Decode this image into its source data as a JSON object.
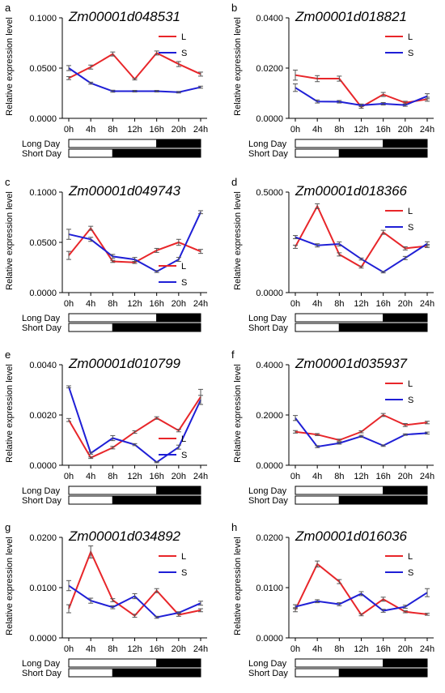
{
  "figure": {
    "ylabel": "Relative expression level",
    "bar_labels": [
      "Long Day",
      "Short Day"
    ],
    "colors": {
      "L": "#e8262a",
      "S": "#1f1fd6",
      "bar": "#000000",
      "light": "#ffffff"
    }
  },
  "chart_data": [
    {
      "panel": "a",
      "type": "line",
      "title": "Zm00001d048531",
      "categories": [
        "0h",
        "4h",
        "8h",
        "12h",
        "16h",
        "20h",
        "24h"
      ],
      "yticks": [
        "0.1000",
        "0.0500",
        "0.0000"
      ],
      "ylim": [
        0,
        0.1
      ],
      "legend": "top-right",
      "series": [
        {
          "name": "L",
          "values": [
            0.04,
            0.051,
            0.064,
            0.039,
            0.065,
            0.054,
            0.044
          ],
          "err": [
            0.0015,
            0.002,
            0.002,
            0.0008,
            0.002,
            0.0025,
            0.002
          ]
        },
        {
          "name": "S",
          "values": [
            0.05,
            0.035,
            0.027,
            0.027,
            0.027,
            0.026,
            0.031
          ],
          "err": [
            0.0025,
            0.001,
            0.001,
            0.0008,
            0.0008,
            0.0008,
            0.001
          ]
        }
      ],
      "light_end": {
        "long": 16,
        "short": 8
      }
    },
    {
      "panel": "b",
      "type": "line",
      "title": "Zm00001d018821",
      "categories": [
        "0h",
        "4h",
        "8h",
        "12h",
        "16h",
        "20h",
        "24h"
      ],
      "yticks": [
        "0.0400",
        "0.0200",
        "0.0000"
      ],
      "ylim": [
        0,
        0.04
      ],
      "legend": "top-right",
      "series": [
        {
          "name": "L",
          "values": [
            0.0172,
            0.0158,
            0.0158,
            0.0045,
            0.0095,
            0.0062,
            0.0076
          ],
          "err": [
            0.002,
            0.0012,
            0.001,
            0.0005,
            0.0008,
            0.0006,
            0.0008
          ]
        },
        {
          "name": "S",
          "values": [
            0.0122,
            0.0067,
            0.0066,
            0.0052,
            0.0058,
            0.0053,
            0.0088
          ],
          "err": [
            0.0015,
            0.0006,
            0.0005,
            0.0005,
            0.0005,
            0.0005,
            0.001
          ]
        }
      ],
      "light_end": {
        "long": 16,
        "short": 8
      }
    },
    {
      "panel": "c",
      "type": "line",
      "title": "Zm00001d049743",
      "categories": [
        "0h",
        "4h",
        "8h",
        "12h",
        "16h",
        "20h",
        "24h"
      ],
      "yticks": [
        "0.1000",
        "0.0500",
        "0.0000"
      ],
      "ylim": [
        0,
        0.1
      ],
      "legend": "bottom-right",
      "series": [
        {
          "name": "L",
          "values": [
            0.037,
            0.064,
            0.031,
            0.03,
            0.042,
            0.05,
            0.041
          ],
          "err": [
            0.004,
            0.002,
            0.001,
            0.001,
            0.002,
            0.003,
            0.002
          ]
        },
        {
          "name": "S",
          "values": [
            0.058,
            0.053,
            0.036,
            0.033,
            0.021,
            0.033,
            0.08
          ],
          "err": [
            0.005,
            0.002,
            0.002,
            0.002,
            0.001,
            0.002,
            0.0015
          ]
        }
      ],
      "light_end": {
        "long": 16,
        "short": 8
      }
    },
    {
      "panel": "d",
      "type": "line",
      "title": "Zm00001d018366",
      "categories": [
        "0h",
        "4h",
        "8h",
        "12h",
        "16h",
        "20h",
        "24h"
      ],
      "yticks": [
        "0.5000",
        "0.0000"
      ],
      "ylim": [
        0,
        0.5
      ],
      "legend": "top-right",
      "series": [
        {
          "name": "L",
          "values": [
            0.228,
            0.43,
            0.19,
            0.127,
            0.3,
            0.22,
            0.232
          ],
          "err": [
            0.008,
            0.012,
            0.008,
            0.005,
            0.01,
            0.008,
            0.008
          ]
        },
        {
          "name": "S",
          "values": [
            0.276,
            0.235,
            0.242,
            0.167,
            0.102,
            0.172,
            0.243
          ],
          "err": [
            0.008,
            0.008,
            0.01,
            0.005,
            0.004,
            0.008,
            0.01
          ]
        }
      ],
      "light_end": {
        "long": 16,
        "short": 8
      }
    },
    {
      "panel": "e",
      "type": "line",
      "title": "Zm00001d010799",
      "categories": [
        "0h",
        "4h",
        "8h",
        "12h",
        "16h",
        "20h",
        "24h"
      ],
      "yticks": [
        "0.0040",
        "0.0020",
        "0.0000"
      ],
      "ylim": [
        0,
        0.004
      ],
      "legend": "bottom-right",
      "series": [
        {
          "name": "L",
          "values": [
            0.0018,
            0.0003,
            0.0007,
            0.00132,
            0.00188,
            0.00138,
            0.00272
          ],
          "err": [
            6e-05,
            3e-05,
            5e-05,
            5e-05,
            5e-05,
            5e-05,
            0.0003
          ]
        },
        {
          "name": "S",
          "values": [
            0.00312,
            0.00048,
            0.00108,
            0.00082,
            0.00012,
            0.00072,
            0.0026
          ],
          "err": [
            4e-05,
            4e-05,
            0.0001,
            4e-05,
            2e-05,
            8e-05,
            0.00018
          ]
        }
      ],
      "light_end": {
        "long": 16,
        "short": 8
      }
    },
    {
      "panel": "f",
      "type": "line",
      "title": "Zm00001d035937",
      "categories": [
        "0h",
        "4h",
        "8h",
        "12h",
        "16h",
        "20h",
        "24h"
      ],
      "yticks": [
        "0.4000",
        "0.2000",
        "0.0000"
      ],
      "ylim": [
        0,
        0.4
      ],
      "legend": "top-right",
      "series": [
        {
          "name": "L",
          "values": [
            0.133,
            0.122,
            0.1,
            0.133,
            0.2,
            0.16,
            0.17
          ],
          "err": [
            0.005,
            0.004,
            0.004,
            0.004,
            0.006,
            0.006,
            0.005
          ]
        },
        {
          "name": "S",
          "values": [
            0.188,
            0.074,
            0.088,
            0.115,
            0.078,
            0.122,
            0.128
          ],
          "err": [
            0.01,
            0.004,
            0.004,
            0.004,
            0.003,
            0.003,
            0.004
          ]
        }
      ],
      "light_end": {
        "long": 16,
        "short": 8
      }
    },
    {
      "panel": "g",
      "type": "line",
      "title": "Zm00001d034892",
      "categories": [
        "0h",
        "4h",
        "8h",
        "12h",
        "16h",
        "20h",
        "24h"
      ],
      "yticks": [
        "0.0200",
        "0.0100",
        "0.0000"
      ],
      "ylim": [
        0,
        0.02
      ],
      "legend": "top-right",
      "series": [
        {
          "name": "L",
          "values": [
            0.0058,
            0.0171,
            0.0075,
            0.0044,
            0.0094,
            0.0046,
            0.0055
          ],
          "err": [
            0.0008,
            0.0012,
            0.0003,
            0.0003,
            0.0004,
            0.0003,
            0.0003
          ]
        },
        {
          "name": "S",
          "values": [
            0.0104,
            0.0074,
            0.0061,
            0.0083,
            0.0041,
            0.005,
            0.0069
          ],
          "err": [
            0.001,
            0.0005,
            0.0003,
            0.0005,
            0.0002,
            0.0002,
            0.0004
          ]
        }
      ],
      "light_end": {
        "long": 16,
        "short": 8
      }
    },
    {
      "panel": "h",
      "type": "line",
      "title": "Zm00001d016036",
      "categories": [
        "0h",
        "4h",
        "8h",
        "12h",
        "16h",
        "20h",
        "24h"
      ],
      "yticks": [
        "0.0200",
        "0.0100",
        "0.0000"
      ],
      "ylim": [
        0,
        0.02
      ],
      "legend": "top-right",
      "series": [
        {
          "name": "L",
          "values": [
            0.0056,
            0.0147,
            0.0112,
            0.0046,
            0.0077,
            0.0052,
            0.0047
          ],
          "err": [
            0.0004,
            0.0006,
            0.0004,
            0.0002,
            0.0004,
            0.0002,
            0.0002
          ]
        },
        {
          "name": "S",
          "values": [
            0.0062,
            0.0073,
            0.0067,
            0.0088,
            0.0054,
            0.0062,
            0.009
          ],
          "err": [
            0.0004,
            0.0003,
            0.0003,
            0.0004,
            0.0003,
            0.0003,
            0.0008
          ]
        }
      ],
      "light_end": {
        "long": 16,
        "short": 8
      }
    }
  ]
}
